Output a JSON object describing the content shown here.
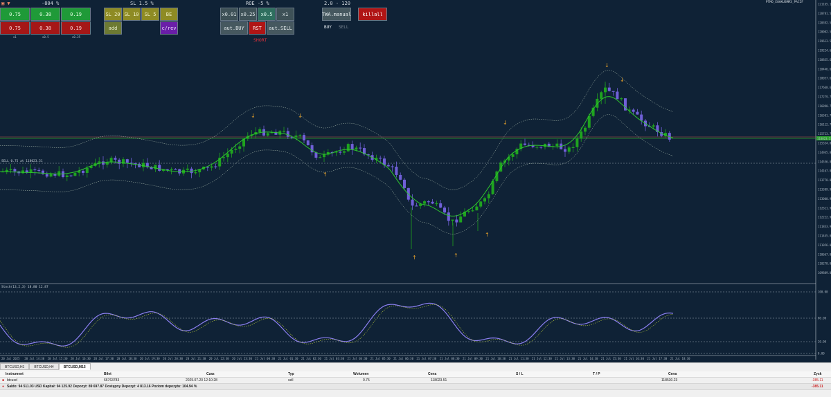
{
  "window": {
    "symbol_title": "BTCUSD,M15",
    "top_right_title": "PTMO_EOAKUSMM3_PACIF"
  },
  "panel": {
    "header_1": "-804 %",
    "header_2": "SL 1.5 %",
    "header_3": "ROE -5 %",
    "header_4": "2.0 - 120",
    "lot_buttons_buy": [
      "0.75",
      "0.38",
      "0.19"
    ],
    "lot_buttons_sell": [
      "0.75",
      "0.38",
      "0.19"
    ],
    "lot_captions": [
      "x1",
      "x0.5",
      "x0.25"
    ],
    "sl_buttons": [
      "SL 20",
      "SL 10",
      "SL 5",
      "BE"
    ],
    "add_label": "add",
    "crev_label": "c/rev",
    "mult_buttons": [
      "x0.01",
      "x0.25",
      "x0.5",
      "x1"
    ],
    "aut_buy": "aut.BUY",
    "rst": "RST",
    "aut_sell": "aut.SELL",
    "twa_manual": "TWA.manual",
    "kill_all": "killall",
    "buy_label": "BUY",
    "sell_label": "SELL",
    "short_label": "SHORT"
  },
  "indicator": {
    "main_label": "SELL 0.75 at 118023.51",
    "stoch_label": "Stoch(13,2,3) 18.80 12.87",
    "stoch_levels": [
      "100.00",
      "80.00",
      "20.00",
      "0.00"
    ]
  },
  "price_axis": [
    "121165.12",
    "120781.52",
    "120392.54",
    "120002.56",
    "119613.58",
    "119224.60",
    "118835.62",
    "118446.64",
    "118057.66",
    "117668.68",
    "117279.70",
    "116890.72",
    "116501.74",
    "116112.76",
    "115723.78",
    "115334.80",
    "114945.82",
    "114556.84",
    "114167.86",
    "113778.88",
    "113389.90",
    "113000.92",
    "112611.94",
    "112222.96",
    "111833.98",
    "111445.00",
    "111056.02",
    "110667.04",
    "110278.06",
    "109889.08"
  ],
  "current_price": "118023.51",
  "time_axis": [
    "20 Jul 2025",
    "20 Jul 14:30",
    "20 Jul 15:30",
    "20 Jul 16:30",
    "20 Jul 17:30",
    "20 Jul 18:30",
    "20 Jul 19:30",
    "20 Jul 20:30",
    "20 Jul 21:30",
    "20 Jul 22:30",
    "20 Jul 23:30",
    "21 Jul 00:30",
    "21 Jul 01:30",
    "21 Jul 02:30",
    "21 Jul 03:30",
    "21 Jul 04:30",
    "21 Jul 05:30",
    "21 Jul 06:30",
    "21 Jul 07:30",
    "21 Jul 08:30",
    "21 Jul 09:30",
    "21 Jul 10:30",
    "21 Jul 11:30",
    "21 Jul 12:30",
    "21 Jul 13:30",
    "21 Jul 14:30",
    "21 Jul 15:30",
    "21 Jul 16:30",
    "21 Jul 17:30",
    "21 Jul 18:30"
  ],
  "tabs": [
    "BTCUSD,H1",
    "BTCUSD,H4",
    "BTCUSD,M15"
  ],
  "table": {
    "headers": [
      "Instrument",
      "Bilet",
      "Czas",
      "Typ",
      "Wolumen",
      "Cena",
      "S / L",
      "T / P",
      "Cena",
      "Zysk"
    ],
    "row": [
      "btcusd",
      "66763783",
      "2025.07.20 12:10:28",
      "sell",
      "0.75",
      "118023.51",
      "",
      "",
      "118530.23",
      "-385.11"
    ],
    "summary": "Saldo: 94 511.03 USD  Kapitał: 94 125.92  Depozyt: 89 697.87  Dostępny Depozyt: 4 813.16  Poziom depozytu: 104.94 %",
    "summary_total": "-385.11"
  },
  "colors": {
    "bull": "#1fa31f",
    "bear": "#7060d8",
    "ma_green": "#2ec52e",
    "ma_purple": "#8b7ff0",
    "arrow": "#e8a22a",
    "bg": "#0f2236"
  }
}
